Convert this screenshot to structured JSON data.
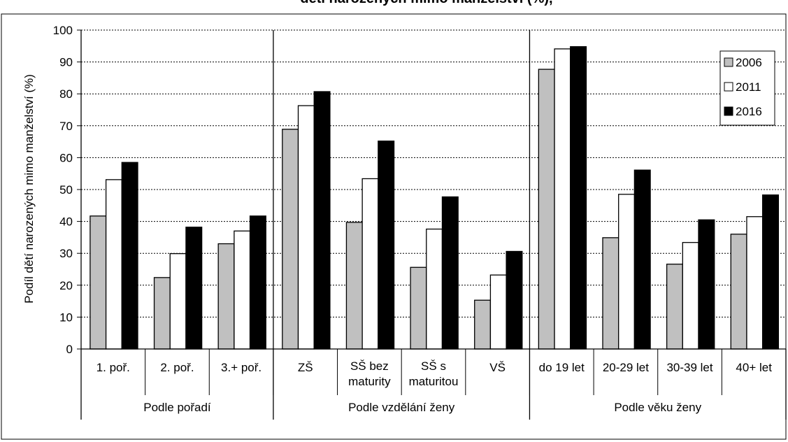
{
  "chart_data": {
    "type": "bar",
    "title": "",
    "title_partial": "dětí narozených mimo manželství (%),",
    "ylabel": "Podíl dětí narozených mimo manželství (%)",
    "xlabel": "",
    "ylim": [
      0,
      100
    ],
    "yticks": [
      0,
      10,
      20,
      30,
      40,
      50,
      60,
      70,
      80,
      90,
      100
    ],
    "grid": true,
    "legend_position": "top-right",
    "groups": [
      {
        "label": "Podle pořadí",
        "categories": [
          "1. poř.",
          "2. poř.",
          "3.+ poř."
        ]
      },
      {
        "label": "Podle vzdělání ženy",
        "categories": [
          "ZŠ",
          "SŠ bez maturity",
          "SŠ s maturitou",
          "VŠ"
        ]
      },
      {
        "label": "Podle věku ženy",
        "categories": [
          "do 19 let",
          "20-29 let",
          "30-39 let",
          "40+ let"
        ]
      }
    ],
    "categories": [
      "1. poř.",
      "2. poř.",
      "3.+ poř.",
      "ZŠ",
      "SŠ bez maturity",
      "SŠ s maturitou",
      "VŠ",
      "do 19 let",
      "20-29 let",
      "30-39 let",
      "40+ let"
    ],
    "category_lines": [
      [
        "1. poř."
      ],
      [
        "2. poř."
      ],
      [
        "3.+ poř."
      ],
      [
        "ZŠ"
      ],
      [
        "SŠ bez",
        "maturity"
      ],
      [
        "SŠ s",
        "maturitou"
      ],
      [
        "VŠ"
      ],
      [
        "do 19 let"
      ],
      [
        "20-29 let"
      ],
      [
        "30-39 let"
      ],
      [
        "40+ let"
      ]
    ],
    "series": [
      {
        "name": "2006",
        "color": "#c0c0c0",
        "values": [
          41.7,
          22.4,
          33.0,
          68.9,
          39.7,
          25.6,
          15.3,
          87.7,
          34.9,
          26.6,
          36.0
        ]
      },
      {
        "name": "2011",
        "color": "#ffffff",
        "values": [
          53.1,
          29.9,
          37.0,
          76.3,
          53.4,
          37.6,
          23.2,
          94.1,
          48.5,
          33.4,
          41.5
        ]
      },
      {
        "name": "2016",
        "color": "#000000",
        "values": [
          58.5,
          38.2,
          41.7,
          80.7,
          65.2,
          47.7,
          30.6,
          94.8,
          56.1,
          40.5,
          48.3
        ]
      }
    ]
  }
}
